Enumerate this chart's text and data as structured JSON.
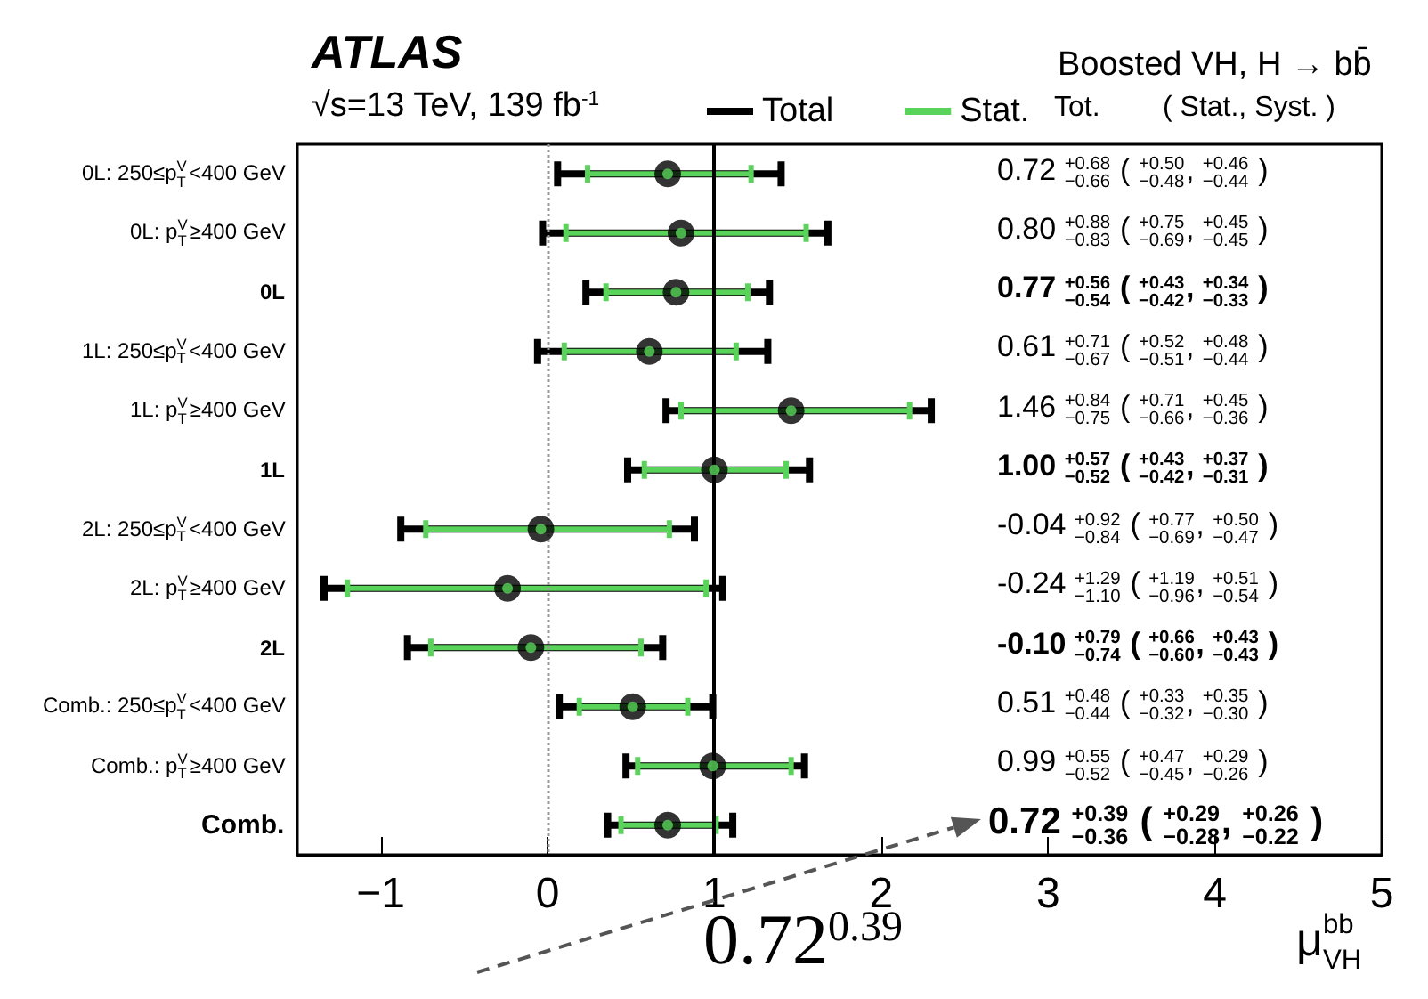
{
  "chart_data": {
    "type": "scatter",
    "orientation": "horizontal",
    "title": "ATLAS",
    "subtitle": "√s=13 TeV, 139 fb$^{-1}$",
    "xlabel": "μ$^{bb}$$_{VH}$",
    "categories": [
      "0L: 250≤p$^{V}$$_{T}$<400 GeV",
      "0L: p$^{V}$$_{T}$≥400 GeV",
      "0L",
      "1L: 250≤p$^{V}$$_{T}$<400 GeV",
      "1L: p$^{V}$$_{T}$≥400 GeV",
      "1L",
      "2L: 250≤p$^{V}$$_{T}$<400 GeV",
      "2L: p$^{V}$$_{T}$≥400 GeV",
      "2L",
      "Comb.: 250≤p$^{V}$$_{T}$<400 GeV",
      "Comb.: p$^{V}$$_{T}$≥400 GeV",
      "Comb."
    ],
    "series": [
      {
        "name": "Total",
        "color": "#000000",
        "marker": "circle",
        "values": [
          0.72,
          0.8,
          0.77,
          0.61,
          1.46,
          1.0,
          -0.04,
          -0.24,
          -0.1,
          0.51,
          0.99,
          0.72
        ],
        "errors": [
          [
            0.06,
            1.4
          ],
          [
            -0.03,
            1.68
          ],
          [
            0.23,
            1.33
          ],
          [
            -0.06,
            1.32
          ],
          [
            0.71,
            2.3
          ],
          [
            0.48,
            1.57
          ],
          [
            -0.88,
            0.88
          ],
          [
            -1.34,
            1.05
          ],
          [
            -0.84,
            0.69
          ],
          [
            0.07,
            0.99
          ],
          [
            0.47,
            1.54
          ],
          [
            0.36,
            1.11
          ]
        ]
      },
      {
        "name": "Stat.",
        "color": "#5ad35a",
        "marker": "circle",
        "values": [
          0.72,
          0.8,
          0.77,
          0.61,
          1.46,
          1.0,
          -0.04,
          -0.24,
          -0.1,
          0.51,
          0.99,
          0.72
        ],
        "errors": [
          [
            0.24,
            1.22
          ],
          [
            0.11,
            1.55
          ],
          [
            0.35,
            1.2
          ],
          [
            0.1,
            1.13
          ],
          [
            0.8,
            2.17
          ],
          [
            0.58,
            1.43
          ],
          [
            -0.73,
            0.73
          ],
          [
            -1.2,
            0.95
          ],
          [
            -0.7,
            0.56
          ],
          [
            0.19,
            0.84
          ],
          [
            0.54,
            1.46
          ],
          [
            0.44,
            1.01
          ]
        ]
      }
    ],
    "xlim": [
      -1.5,
      5
    ],
    "xticks": [
      {
        "value": -1,
        "label": "−1"
      },
      0,
      1,
      2,
      3,
      4,
      5
    ],
    "ref_lines": [
      {
        "axis": "x",
        "value": 0,
        "color": "#999999",
        "line_style": "dotted"
      },
      {
        "axis": "x",
        "value": 1,
        "color": "#000000",
        "line_style": "solid"
      }
    ],
    "legend": "top",
    "annotations": [
      "Boosted VH, H → bb̄",
      "Tot.",
      "( Stat., Syst. )",
      "0.72 $^{+0.68}$$_{−0.66}$ ( $^{+0.50}$$_{−0.48}$, $^{+0.46}$$_{−0.44}$ )",
      "0.80 $^{+0.88}$$_{−0.83}$ ( $^{+0.75}$$_{−0.69}$, $^{+0.45}$$_{−0.45}$ )",
      "0.77 $^{+0.56}$$_{−0.54}$ ( $^{+0.43}$$_{−0.42}$, $^{+0.34}$$_{−0.33}$ )",
      "0.61 $^{+0.71}$$_{−0.67}$ ( $^{+0.52}$$_{−0.51}$, $^{+0.48}$$_{−0.44}$ )",
      "1.46 $^{+0.84}$$_{−0.75}$ ( $^{+0.71}$$_{−0.66}$, $^{+0.45}$$_{−0.36}$ )",
      "1.00 $^{+0.57}$$_{−0.52}$ ( $^{+0.43}$$_{−0.42}$, $^{+0.37}$$_{−0.31}$ )",
      "-0.04 $^{+0.92}$$_{−0.84}$ ( $^{+0.77}$$_{−0.69}$, $^{+0.50}$$_{−0.47}$ )",
      "-0.24 $^{+1.29}$$_{−1.10}$ ( $^{+1.19}$$_{−0.96}$, $^{+0.51}$$_{−0.54}$ )",
      "-0.10 $^{+0.79}$$_{−0.74}$ ( $^{+0.66}$$_{−0.60}$, $^{+0.43}$$_{−0.43}$ )",
      "0.51 $^{+0.48}$$_{−0.44}$ ( $^{+0.33}$$_{−0.32}$, $^{+0.35}$$_{−0.30}$ )",
      "0.99 $^{+0.55}$$_{−0.52}$ ( $^{+0.47}$$_{−0.45}$, $^{+0.29}$$_{−0.26}$ )",
      "0.72 $^{+0.39}$$_{−0.36}$ ( $^{+0.29}$$_{−0.28}$, $^{+0.26}$$_{−0.22}$ )",
      "0.72$^{0.39}$"
    ]
  }
}
